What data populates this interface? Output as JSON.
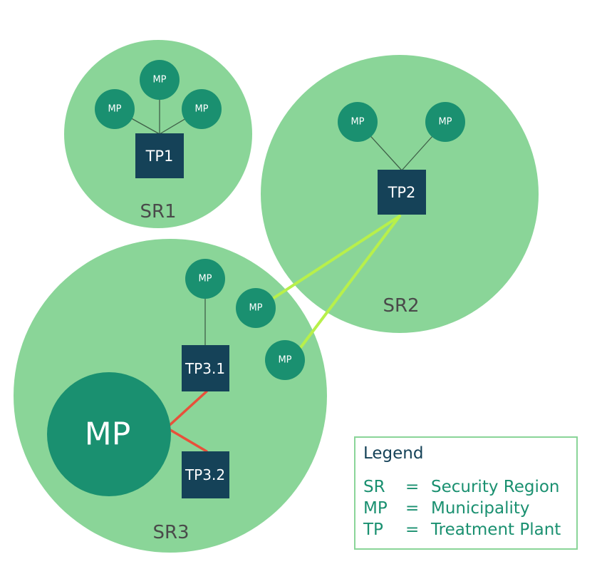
{
  "diagram": {
    "regions": [
      {
        "id": "sr1",
        "label": "SR1"
      },
      {
        "id": "sr2",
        "label": "SR2"
      },
      {
        "id": "sr3",
        "label": "SR3"
      }
    ],
    "plants": {
      "tp1": "TP1",
      "tp2": "TP2",
      "tp31": "TP3.1",
      "tp32": "TP3.2"
    },
    "municipality_label": "MP",
    "legend": {
      "title": "Legend",
      "entries": [
        {
          "abbr": "SR",
          "sep": "=",
          "meaning": "Security Region"
        },
        {
          "abbr": "MP",
          "sep": "=",
          "meaning": "Municipality"
        },
        {
          "abbr": "TP",
          "sep": "=",
          "meaning": "Treatment Plant"
        }
      ]
    },
    "colors": {
      "region": "#8ad598",
      "municipality": "#1a9070",
      "treatment_plant": "#154258",
      "link_normal": "#3f6048",
      "link_cross_region": "#b8f04a",
      "link_conflict": "#e8503a"
    }
  }
}
